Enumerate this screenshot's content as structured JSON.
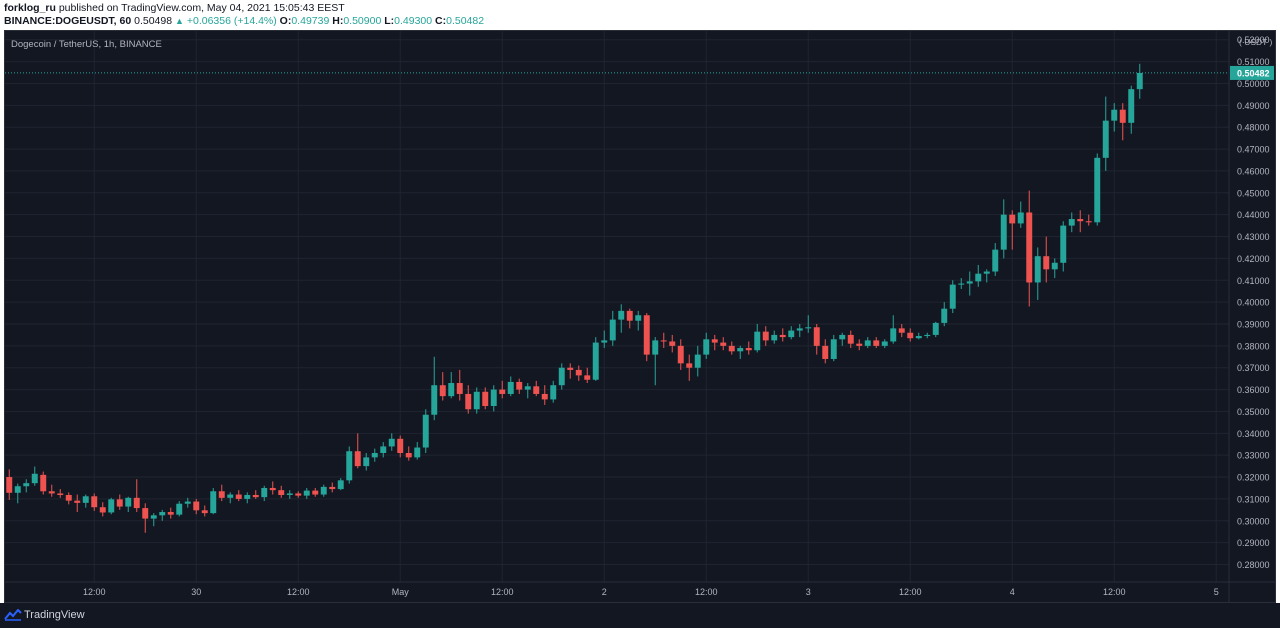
{
  "header": {
    "publisher": "forklog_ru",
    "published_text": "published on TradingView.com, May 04, 2021 15:05:43 EEST",
    "symbol": "BINANCE:DOGEUSDT, 60",
    "last": "0.50498",
    "change": "+0.06356 (+14.4%)",
    "o_label": "O:",
    "o_value": "0.49739",
    "h_label": "H:",
    "h_value": "0.50900",
    "l_label": "L:",
    "l_value": "0.49300",
    "c_label": "C:",
    "c_value": "0.50482"
  },
  "chart_title": "Dogecoin / TetherUS, 1h, BINANCE",
  "footer": {
    "brand": "TradingView"
  },
  "colors": {
    "background": "#131722",
    "grid": "#1f2430",
    "up": "#26a69a",
    "down": "#ef5350",
    "text": "#b2b5be",
    "price_line": "#26a69a"
  },
  "chart_data": {
    "type": "candlestick",
    "title": "Dogecoin / TetherUS, 1h, BINANCE",
    "y_unit_label": "USDT",
    "ylim": [
      0.272,
      0.524
    ],
    "y_ticks": [
      "0.28000",
      "0.29000",
      "0.30000",
      "0.31000",
      "0.32000",
      "0.33000",
      "0.34000",
      "0.35000",
      "0.36000",
      "0.37000",
      "0.38000",
      "0.39000",
      "0.40000",
      "0.41000",
      "0.42000",
      "0.43000",
      "0.44000",
      "0.45000",
      "0.46000",
      "0.47000",
      "0.48000",
      "0.49000",
      "0.50000",
      "0.51000",
      "0.52000"
    ],
    "current_price": 0.50482,
    "current_price_label": "0.50482",
    "x_ticks": [
      {
        "label": "12:00",
        "i": 10
      },
      {
        "label": "30",
        "i": 22
      },
      {
        "label": "12:00",
        "i": 34
      },
      {
        "label": "May",
        "i": 46
      },
      {
        "label": "12:00",
        "i": 58
      },
      {
        "label": "2",
        "i": 70
      },
      {
        "label": "12:00",
        "i": 82
      },
      {
        "label": "3",
        "i": 94
      },
      {
        "label": "12:00",
        "i": 106
      },
      {
        "label": "4",
        "i": 118
      },
      {
        "label": "12:00",
        "i": 130
      },
      {
        "label": "5",
        "i": 142
      }
    ],
    "x_count": 144,
    "grid": true,
    "candles": [
      [
        0.32,
        0.3235,
        0.3095,
        0.3128
      ],
      [
        0.3128,
        0.317,
        0.308,
        0.3158
      ],
      [
        0.3158,
        0.319,
        0.313,
        0.3172
      ],
      [
        0.3172,
        0.3248,
        0.316,
        0.3215
      ],
      [
        0.321,
        0.3225,
        0.312,
        0.3135
      ],
      [
        0.3135,
        0.3165,
        0.311,
        0.3125
      ],
      [
        0.3125,
        0.3145,
        0.3105,
        0.3118
      ],
      [
        0.3118,
        0.313,
        0.3075,
        0.3092
      ],
      [
        0.3092,
        0.312,
        0.304,
        0.3082
      ],
      [
        0.3082,
        0.312,
        0.306,
        0.3112
      ],
      [
        0.3112,
        0.3125,
        0.3045,
        0.3062
      ],
      [
        0.3062,
        0.3085,
        0.302,
        0.3038
      ],
      [
        0.3038,
        0.3105,
        0.303,
        0.3098
      ],
      [
        0.3098,
        0.312,
        0.305,
        0.3065
      ],
      [
        0.3065,
        0.311,
        0.304,
        0.3105
      ],
      [
        0.3105,
        0.319,
        0.304,
        0.3058
      ],
      [
        0.3058,
        0.308,
        0.2945,
        0.301
      ],
      [
        0.301,
        0.3035,
        0.2975,
        0.3025
      ],
      [
        0.3025,
        0.305,
        0.3,
        0.304
      ],
      [
        0.304,
        0.306,
        0.301,
        0.3028
      ],
      [
        0.3028,
        0.309,
        0.302,
        0.3078
      ],
      [
        0.3078,
        0.3105,
        0.306,
        0.3088
      ],
      [
        0.3088,
        0.31,
        0.303,
        0.3048
      ],
      [
        0.3048,
        0.307,
        0.302,
        0.3035
      ],
      [
        0.3035,
        0.315,
        0.303,
        0.3135
      ],
      [
        0.3135,
        0.3165,
        0.309,
        0.3105
      ],
      [
        0.3105,
        0.313,
        0.308,
        0.312
      ],
      [
        0.312,
        0.314,
        0.309,
        0.31
      ],
      [
        0.31,
        0.313,
        0.308,
        0.3118
      ],
      [
        0.3118,
        0.314,
        0.31,
        0.3108
      ],
      [
        0.3108,
        0.316,
        0.309,
        0.315
      ],
      [
        0.315,
        0.318,
        0.312,
        0.314
      ],
      [
        0.314,
        0.316,
        0.3105,
        0.3118
      ],
      [
        0.3118,
        0.314,
        0.31,
        0.3125
      ],
      [
        0.3125,
        0.3135,
        0.3105,
        0.3115
      ],
      [
        0.3115,
        0.315,
        0.31,
        0.3138
      ],
      [
        0.3138,
        0.315,
        0.311,
        0.312
      ],
      [
        0.312,
        0.3165,
        0.311,
        0.3155
      ],
      [
        0.3155,
        0.3175,
        0.313,
        0.3145
      ],
      [
        0.3145,
        0.3195,
        0.314,
        0.3185
      ],
      [
        0.3185,
        0.334,
        0.317,
        0.3318
      ],
      [
        0.3318,
        0.34,
        0.324,
        0.325
      ],
      [
        0.325,
        0.331,
        0.323,
        0.329
      ],
      [
        0.329,
        0.333,
        0.327,
        0.331
      ],
      [
        0.331,
        0.336,
        0.329,
        0.334
      ],
      [
        0.334,
        0.34,
        0.332,
        0.3375
      ],
      [
        0.3375,
        0.339,
        0.329,
        0.331
      ],
      [
        0.331,
        0.334,
        0.3275,
        0.329
      ],
      [
        0.329,
        0.336,
        0.328,
        0.3335
      ],
      [
        0.3335,
        0.351,
        0.331,
        0.3485
      ],
      [
        0.3485,
        0.375,
        0.346,
        0.362
      ],
      [
        0.362,
        0.368,
        0.355,
        0.357
      ],
      [
        0.357,
        0.368,
        0.356,
        0.363
      ],
      [
        0.363,
        0.369,
        0.355,
        0.358
      ],
      [
        0.358,
        0.362,
        0.349,
        0.351
      ],
      [
        0.351,
        0.361,
        0.349,
        0.359
      ],
      [
        0.359,
        0.361,
        0.351,
        0.3525
      ],
      [
        0.3525,
        0.362,
        0.35,
        0.36
      ],
      [
        0.36,
        0.364,
        0.356,
        0.358
      ],
      [
        0.358,
        0.366,
        0.357,
        0.3635
      ],
      [
        0.3635,
        0.365,
        0.358,
        0.36
      ],
      [
        0.36,
        0.363,
        0.356,
        0.3615
      ],
      [
        0.3615,
        0.364,
        0.357,
        0.358
      ],
      [
        0.358,
        0.362,
        0.353,
        0.3555
      ],
      [
        0.3555,
        0.364,
        0.354,
        0.362
      ],
      [
        0.362,
        0.372,
        0.36,
        0.37
      ],
      [
        0.37,
        0.372,
        0.365,
        0.369
      ],
      [
        0.369,
        0.371,
        0.364,
        0.3665
      ],
      [
        0.3665,
        0.37,
        0.363,
        0.3645
      ],
      [
        0.3645,
        0.384,
        0.364,
        0.3815
      ],
      [
        0.3815,
        0.387,
        0.379,
        0.3825
      ],
      [
        0.3825,
        0.396,
        0.38,
        0.392
      ],
      [
        0.392,
        0.399,
        0.386,
        0.396
      ],
      [
        0.396,
        0.397,
        0.388,
        0.3915
      ],
      [
        0.3915,
        0.396,
        0.387,
        0.394
      ],
      [
        0.394,
        0.395,
        0.373,
        0.376
      ],
      [
        0.376,
        0.384,
        0.362,
        0.3825
      ],
      [
        0.3825,
        0.386,
        0.379,
        0.382
      ],
      [
        0.382,
        0.385,
        0.377,
        0.38
      ],
      [
        0.38,
        0.383,
        0.369,
        0.372
      ],
      [
        0.372,
        0.376,
        0.364,
        0.37
      ],
      [
        0.37,
        0.38,
        0.366,
        0.376
      ],
      [
        0.376,
        0.386,
        0.374,
        0.383
      ],
      [
        0.383,
        0.385,
        0.378,
        0.3815
      ],
      [
        0.3815,
        0.384,
        0.378,
        0.38
      ],
      [
        0.38,
        0.382,
        0.376,
        0.3775
      ],
      [
        0.3775,
        0.38,
        0.374,
        0.379
      ],
      [
        0.379,
        0.382,
        0.376,
        0.378
      ],
      [
        0.378,
        0.39,
        0.377,
        0.3865
      ],
      [
        0.3865,
        0.389,
        0.38,
        0.3825
      ],
      [
        0.3825,
        0.387,
        0.381,
        0.385
      ],
      [
        0.385,
        0.388,
        0.382,
        0.384
      ],
      [
        0.384,
        0.389,
        0.383,
        0.387
      ],
      [
        0.387,
        0.39,
        0.384,
        0.388
      ],
      [
        0.388,
        0.394,
        0.386,
        0.3885
      ],
      [
        0.3885,
        0.39,
        0.376,
        0.38
      ],
      [
        0.38,
        0.383,
        0.372,
        0.374
      ],
      [
        0.374,
        0.385,
        0.373,
        0.383
      ],
      [
        0.383,
        0.386,
        0.38,
        0.385
      ],
      [
        0.385,
        0.387,
        0.379,
        0.381
      ],
      [
        0.381,
        0.383,
        0.378,
        0.38
      ],
      [
        0.38,
        0.384,
        0.379,
        0.3825
      ],
      [
        0.3825,
        0.384,
        0.379,
        0.38
      ],
      [
        0.38,
        0.383,
        0.379,
        0.382
      ],
      [
        0.382,
        0.394,
        0.381,
        0.388
      ],
      [
        0.388,
        0.39,
        0.384,
        0.386
      ],
      [
        0.386,
        0.388,
        0.382,
        0.3835
      ],
      [
        0.3835,
        0.386,
        0.383,
        0.3845
      ],
      [
        0.3845,
        0.386,
        0.3835,
        0.385
      ],
      [
        0.385,
        0.391,
        0.384,
        0.3905
      ],
      [
        0.3905,
        0.4,
        0.389,
        0.397
      ],
      [
        0.397,
        0.41,
        0.395,
        0.408
      ],
      [
        0.408,
        0.411,
        0.406,
        0.4085
      ],
      [
        0.4085,
        0.414,
        0.403,
        0.4095
      ],
      [
        0.4095,
        0.417,
        0.407,
        0.413
      ],
      [
        0.413,
        0.415,
        0.409,
        0.414
      ],
      [
        0.414,
        0.427,
        0.412,
        0.424
      ],
      [
        0.424,
        0.447,
        0.42,
        0.44
      ],
      [
        0.44,
        0.442,
        0.424,
        0.436
      ],
      [
        0.436,
        0.446,
        0.434,
        0.441
      ],
      [
        0.441,
        0.451,
        0.398,
        0.409
      ],
      [
        0.409,
        0.425,
        0.401,
        0.421
      ],
      [
        0.421,
        0.43,
        0.409,
        0.415
      ],
      [
        0.415,
        0.42,
        0.411,
        0.418
      ],
      [
        0.418,
        0.437,
        0.414,
        0.435
      ],
      [
        0.435,
        0.441,
        0.432,
        0.438
      ],
      [
        0.438,
        0.442,
        0.432,
        0.437
      ],
      [
        0.437,
        0.44,
        0.435,
        0.4365
      ],
      [
        0.4365,
        0.468,
        0.435,
        0.466
      ],
      [
        0.466,
        0.494,
        0.46,
        0.483
      ],
      [
        0.483,
        0.491,
        0.478,
        0.488
      ],
      [
        0.488,
        0.491,
        0.474,
        0.482
      ],
      [
        0.482,
        0.499,
        0.477,
        0.4974
      ],
      [
        0.4974,
        0.509,
        0.493,
        0.5048
      ]
    ]
  }
}
